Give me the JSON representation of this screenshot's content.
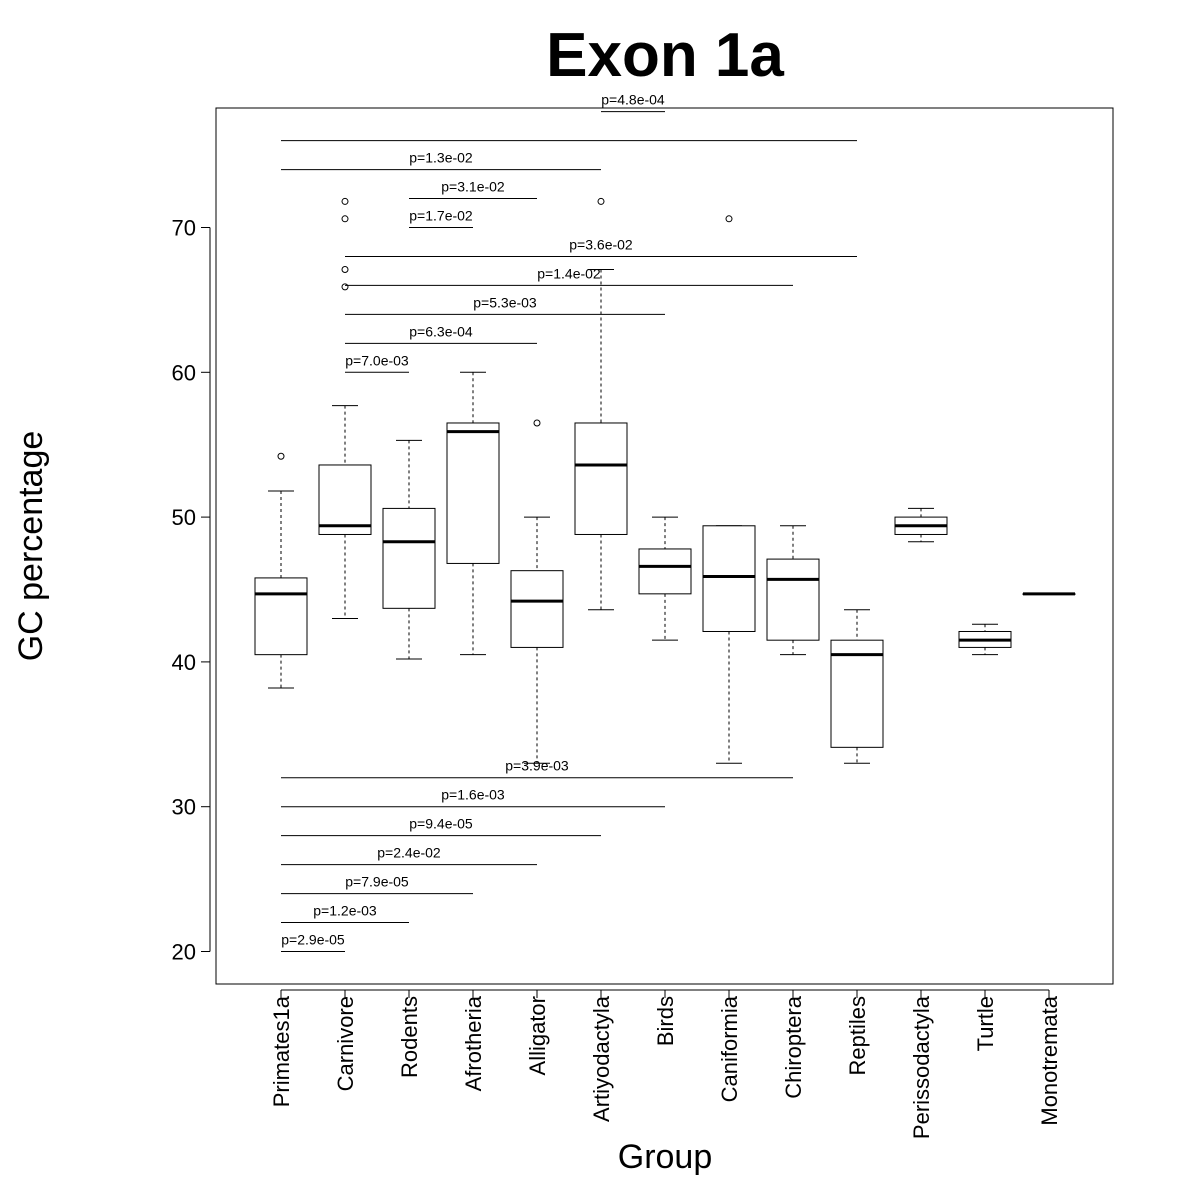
{
  "chart_data": {
    "type": "box",
    "title": "Exon 1a",
    "xlabel": "Group",
    "ylabel": "GC percentage",
    "ylim": [
      18,
      78.5
    ],
    "yticks": [
      20,
      30,
      40,
      50,
      60,
      70
    ],
    "grid": false,
    "categories": [
      "Primates1a",
      "Carnivore",
      "Rodents",
      "Afrotheria",
      "Alligator",
      "Artiyodactyla",
      "Birds",
      "Caniformia",
      "Chiroptera",
      "Reptiles",
      "Perissodactyla",
      "Turtle",
      "Monotremata"
    ],
    "boxes": [
      {
        "q1": 40.5,
        "median": 44.7,
        "q3": 45.8,
        "whisker_low": 38.2,
        "whisker_high": 51.8,
        "outliers": [
          54.2
        ]
      },
      {
        "q1": 48.8,
        "median": 49.4,
        "q3": 53.6,
        "whisker_low": 43.0,
        "whisker_high": 57.7,
        "outliers": [
          65.9,
          67.1,
          70.6,
          71.8
        ]
      },
      {
        "q1": 43.7,
        "median": 48.3,
        "q3": 50.6,
        "whisker_low": 40.2,
        "whisker_high": 55.3,
        "outliers": []
      },
      {
        "q1": 46.8,
        "median": 55.9,
        "q3": 56.5,
        "whisker_low": 40.5,
        "whisker_high": 60.0,
        "outliers": []
      },
      {
        "q1": 41.0,
        "median": 44.2,
        "q3": 46.3,
        "whisker_low": 33.0,
        "whisker_high": 50.0,
        "outliers": [
          56.5
        ]
      },
      {
        "q1": 48.8,
        "median": 53.6,
        "q3": 56.5,
        "whisker_low": 43.6,
        "whisker_high": 67.1,
        "outliers": [
          71.8
        ]
      },
      {
        "q1": 44.7,
        "median": 46.6,
        "q3": 47.8,
        "whisker_low": 41.5,
        "whisker_high": 50.0,
        "outliers": []
      },
      {
        "q1": 42.1,
        "median": 45.9,
        "q3": 49.4,
        "whisker_low": 33.0,
        "whisker_high": 49.4,
        "outliers": [
          70.6
        ]
      },
      {
        "q1": 41.5,
        "median": 45.7,
        "q3": 47.1,
        "whisker_low": 40.5,
        "whisker_high": 49.4,
        "outliers": []
      },
      {
        "q1": 34.1,
        "median": 40.5,
        "q3": 41.5,
        "whisker_low": 33.0,
        "whisker_high": 43.6,
        "outliers": []
      },
      {
        "q1": 48.8,
        "median": 49.4,
        "q3": 50.0,
        "whisker_low": 48.3,
        "whisker_high": 50.6,
        "outliers": []
      },
      {
        "q1": 41.0,
        "median": 41.5,
        "q3": 42.1,
        "whisker_low": 40.5,
        "whisker_high": 42.6,
        "outliers": []
      },
      {
        "q1": 44.7,
        "median": 44.7,
        "q3": 44.7,
        "whisker_low": 44.7,
        "whisker_high": 44.7,
        "outliers": []
      }
    ],
    "comparisons": [
      {
        "from": "Artiyodactyla",
        "to": "Birds",
        "y": 78.0,
        "label": "p=4.8e-04"
      },
      {
        "from": "Primates1a",
        "to": "Reptiles",
        "y": 76.0,
        "label": ""
      },
      {
        "from": "Primates1a",
        "to": "Artiyodactyla",
        "y": 74.0,
        "label": "p=1.3e-02"
      },
      {
        "from": "Rodents",
        "to": "Alligator",
        "y": 72.0,
        "label": "p=3.1e-02"
      },
      {
        "from": "Rodents",
        "to": "Afrotheria",
        "y": 70.0,
        "label": "p=1.7e-02"
      },
      {
        "from": "Carnivore",
        "to": "Reptiles",
        "y": 68.0,
        "label": "p=3.6e-02"
      },
      {
        "from": "Carnivore",
        "to": "Chiroptera",
        "y": 66.0,
        "label": "p=1.4e-02"
      },
      {
        "from": "Carnivore",
        "to": "Birds",
        "y": 64.0,
        "label": "p=5.3e-03"
      },
      {
        "from": "Carnivore",
        "to": "Alligator",
        "y": 62.0,
        "label": "p=6.3e-04"
      },
      {
        "from": "Carnivore",
        "to": "Rodents",
        "y": 60.0,
        "label": "p=7.0e-03"
      },
      {
        "from": "Primates1a",
        "to": "Chiroptera",
        "y": 32.0,
        "label": "p=3.9e-03"
      },
      {
        "from": "Primates1a",
        "to": "Birds",
        "y": 30.0,
        "label": "p=1.6e-03"
      },
      {
        "from": "Primates1a",
        "to": "Artiyodactyla",
        "y": 28.0,
        "label": "p=9.4e-05"
      },
      {
        "from": "Primates1a",
        "to": "Alligator",
        "y": 26.0,
        "label": "p=2.4e-02"
      },
      {
        "from": "Primates1a",
        "to": "Afrotheria",
        "y": 24.0,
        "label": "p=7.9e-05"
      },
      {
        "from": "Primates1a",
        "to": "Rodents",
        "y": 22.0,
        "label": "p=1.2e-03"
      },
      {
        "from": "Primates1a",
        "to": "Carnivore",
        "y": 20.0,
        "label": "p=2.9e-05"
      }
    ]
  }
}
